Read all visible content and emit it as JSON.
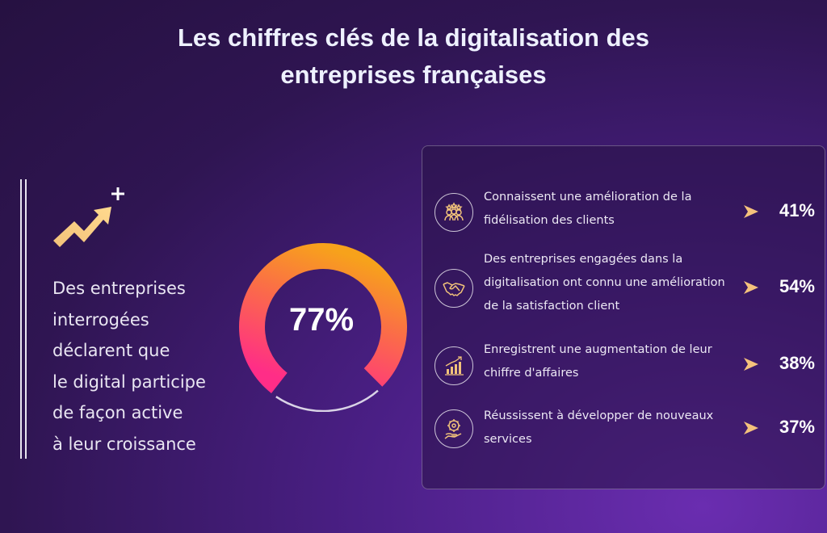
{
  "title": {
    "line1": "Les chiffres clés de la digitalisation des",
    "line2": "entreprises françaises"
  },
  "colors": {
    "background": "#2f1552",
    "accent_orange": "#f7a21b",
    "accent_pink": "#ff2d87",
    "icon_gold": "#f1c27a"
  },
  "left_block": {
    "icon": "trend-up-arrow-icon",
    "text_lines": [
      "Des entreprises",
      "interrogées",
      "déclarent que",
      "le digital participe",
      "de façon active",
      "à leur croissance"
    ]
  },
  "chart_data": [
    {
      "type": "pie",
      "style": "donut",
      "value": 77,
      "label": "77%",
      "range": [
        0,
        100
      ],
      "gradient": [
        "#ff2d87",
        "#f7a21b"
      ]
    },
    {
      "type": "table",
      "rows": [
        {
          "icon": "customers-stars-icon",
          "lines": [
            "Connaissent une amélioration de la",
            "fidélisation des clients"
          ],
          "value": 41,
          "label": "41%"
        },
        {
          "icon": "handshake-icon",
          "lines": [
            "Des entreprises engagées dans la",
            "digitalisation ont connu une amélioration",
            " de la satisfaction client"
          ],
          "value": 54,
          "label": "54%"
        },
        {
          "icon": "growth-chart-icon",
          "lines": [
            "Enregistrent une augmentation de leur",
            "chiffre d'affaires"
          ],
          "value": 38,
          "label": "38%"
        },
        {
          "icon": "new-services-icon",
          "lines": [
            "Réussissent à développer de nouveaux",
            "services"
          ],
          "value": 37,
          "label": "37%"
        }
      ]
    }
  ]
}
